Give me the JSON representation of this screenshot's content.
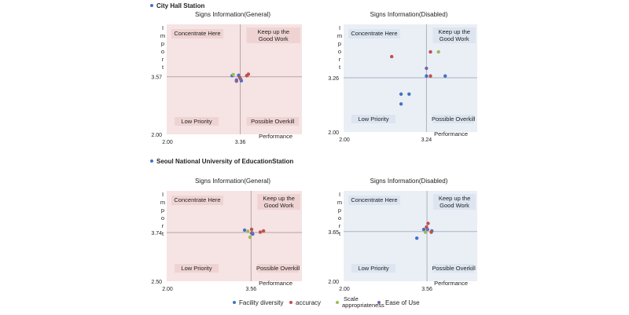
{
  "sections": [
    {
      "title": "City Hall Station"
    },
    {
      "title": "Seoul National University of EducationStation"
    }
  ],
  "legend": [
    {
      "label": "Facility diversity",
      "color": "#4472c4"
    },
    {
      "label": "accuracy",
      "color": "#c0504d"
    },
    {
      "label": "Scale appropriateness",
      "color": "#9bbb59"
    },
    {
      "label": "Ease of Use",
      "color": "#8064a2"
    }
  ],
  "chart_data": [
    {
      "type": "scatter",
      "title": "Signs Information(General)",
      "theme": "pink",
      "xlabel": "Performance",
      "ylabel": "Import",
      "xlim": [
        2.0,
        4.5
      ],
      "ylim": [
        2.0,
        5.0
      ],
      "x_ticks": [
        "2.00",
        "3.36"
      ],
      "y_ticks": [
        "2.00",
        "3.57"
      ],
      "mean_x": 3.36,
      "mean_y": 3.57,
      "quadrants": {
        "top_left": "Concentrate Here",
        "top_right": "Keep up the Good Work",
        "bottom_left": "Low Priority",
        "bottom_right": "Possible Overkill"
      },
      "points": [
        {
          "series": "Facility diversity",
          "color": "#4472c4",
          "x": 3.21,
          "y": 3.6
        },
        {
          "series": "Facility diversity",
          "color": "#4472c4",
          "x": 3.33,
          "y": 3.61
        },
        {
          "series": "Facility diversity",
          "color": "#4472c4",
          "x": 3.38,
          "y": 3.46
        },
        {
          "series": "Facility diversity",
          "color": "#4472c4",
          "x": 3.29,
          "y": 3.48
        },
        {
          "series": "accuracy",
          "color": "#c0504d",
          "x": 3.48,
          "y": 3.6
        },
        {
          "series": "accuracy",
          "color": "#c0504d",
          "x": 3.51,
          "y": 3.64
        },
        {
          "series": "accuracy",
          "color": "#c0504d",
          "x": 3.35,
          "y": 3.55
        },
        {
          "series": "Scale appropriateness",
          "color": "#9bbb59",
          "x": 3.23,
          "y": 3.63
        },
        {
          "series": "Ease of Use",
          "color": "#8064a2",
          "x": 3.29,
          "y": 3.45
        },
        {
          "series": "Ease of Use",
          "color": "#8064a2",
          "x": 3.37,
          "y": 3.5
        }
      ]
    },
    {
      "type": "scatter",
      "title": "Signs Information(Disabled)",
      "theme": "blue",
      "xlabel": "Performance",
      "ylabel": "Import",
      "xlim": [
        2.0,
        4.0
      ],
      "ylim": [
        2.0,
        4.5
      ],
      "x_ticks": [
        "2.00",
        "3.24"
      ],
      "y_ticks": [
        "2.00",
        "3.26"
      ],
      "mean_x": 3.24,
      "mean_y": 3.26,
      "quadrants": {
        "top_left": "Concentrate Here",
        "top_right": "Keep up the Good Work",
        "bottom_left": "Low Priority",
        "bottom_right": "Possible Overkill"
      },
      "points": [
        {
          "series": "Facility diversity",
          "color": "#4472c4",
          "x": 3.24,
          "y": 3.3
        },
        {
          "series": "Facility diversity",
          "color": "#4472c4",
          "x": 3.52,
          "y": 3.3
        },
        {
          "series": "Facility diversity",
          "color": "#4472c4",
          "x": 2.98,
          "y": 2.88
        },
        {
          "series": "Facility diversity",
          "color": "#4472c4",
          "x": 2.86,
          "y": 2.88
        },
        {
          "series": "Facility diversity",
          "color": "#4472c4",
          "x": 2.86,
          "y": 2.65
        },
        {
          "series": "accuracy",
          "color": "#c0504d",
          "x": 2.72,
          "y": 3.75
        },
        {
          "series": "accuracy",
          "color": "#c0504d",
          "x": 3.3,
          "y": 3.86
        },
        {
          "series": "accuracy",
          "color": "#c0504d",
          "x": 3.3,
          "y": 3.3
        },
        {
          "series": "Scale appropriateness",
          "color": "#9bbb59",
          "x": 3.42,
          "y": 3.86
        },
        {
          "series": "Ease of Use",
          "color": "#8064a2",
          "x": 3.24,
          "y": 3.48
        }
      ]
    },
    {
      "type": "scatter",
      "title": "Signs Information(General)",
      "theme": "pink",
      "xlabel": "Performance",
      "ylabel": "Import",
      "xlim": [
        2.0,
        4.5
      ],
      "ylim": [
        2.5,
        4.8
      ],
      "x_ticks": [
        "2.00",
        "3.56"
      ],
      "y_ticks": [
        "2.50",
        "3.74"
      ],
      "mean_x": 3.56,
      "mean_y": 3.74,
      "quadrants": {
        "top_left": "Concentrate Here",
        "top_right": "Keep up the Good Work",
        "bottom_left": "Low Priority",
        "bottom_right": "Possible Overkill"
      },
      "points": [
        {
          "series": "Facility diversity",
          "color": "#4472c4",
          "x": 3.44,
          "y": 3.8
        },
        {
          "series": "Facility diversity",
          "color": "#4472c4",
          "x": 3.58,
          "y": 3.73
        },
        {
          "series": "Facility diversity",
          "color": "#4472c4",
          "x": 3.59,
          "y": 3.7
        },
        {
          "series": "accuracy",
          "color": "#c0504d",
          "x": 3.57,
          "y": 3.82
        },
        {
          "series": "accuracy",
          "color": "#c0504d",
          "x": 3.73,
          "y": 3.75
        },
        {
          "series": "accuracy",
          "color": "#c0504d",
          "x": 3.79,
          "y": 3.78
        },
        {
          "series": "Scale appropriateness",
          "color": "#9bbb59",
          "x": 3.5,
          "y": 3.77
        },
        {
          "series": "Scale appropriateness",
          "color": "#9bbb59",
          "x": 3.54,
          "y": 3.62
        },
        {
          "series": "Ease of Use",
          "color": "#8064a2",
          "x": 3.57,
          "y": 3.72
        }
      ]
    },
    {
      "type": "scatter",
      "title": "Signs Information(Disabled)",
      "theme": "blue",
      "xlabel": "Performance",
      "ylabel": "Import",
      "xlim": [
        2.0,
        4.5
      ],
      "ylim": [
        2.0,
        5.0
      ],
      "x_ticks": [
        "2.00",
        "3.56"
      ],
      "y_ticks": [
        "2.00",
        "3.65"
      ],
      "mean_x": 3.56,
      "mean_y": 3.65,
      "quadrants": {
        "top_left": "Concentrate Here",
        "top_right": "Keep up the Good Work",
        "bottom_left": "Low Priority",
        "bottom_right": "Possible Overkill"
      },
      "points": [
        {
          "series": "Facility diversity",
          "color": "#4472c4",
          "x": 3.5,
          "y": 3.72
        },
        {
          "series": "Facility diversity",
          "color": "#4472c4",
          "x": 3.37,
          "y": 3.43
        },
        {
          "series": "Facility diversity",
          "color": "#4472c4",
          "x": 3.65,
          "y": 3.67
        },
        {
          "series": "accuracy",
          "color": "#c0504d",
          "x": 3.58,
          "y": 3.92
        },
        {
          "series": "accuracy",
          "color": "#c0504d",
          "x": 3.55,
          "y": 3.8
        },
        {
          "series": "accuracy",
          "color": "#c0504d",
          "x": 3.64,
          "y": 3.63
        },
        {
          "series": "Scale appropriateness",
          "color": "#9bbb59",
          "x": 3.53,
          "y": 3.63
        },
        {
          "series": "Ease of Use",
          "color": "#8064a2",
          "x": 3.57,
          "y": 3.72
        }
      ]
    }
  ]
}
